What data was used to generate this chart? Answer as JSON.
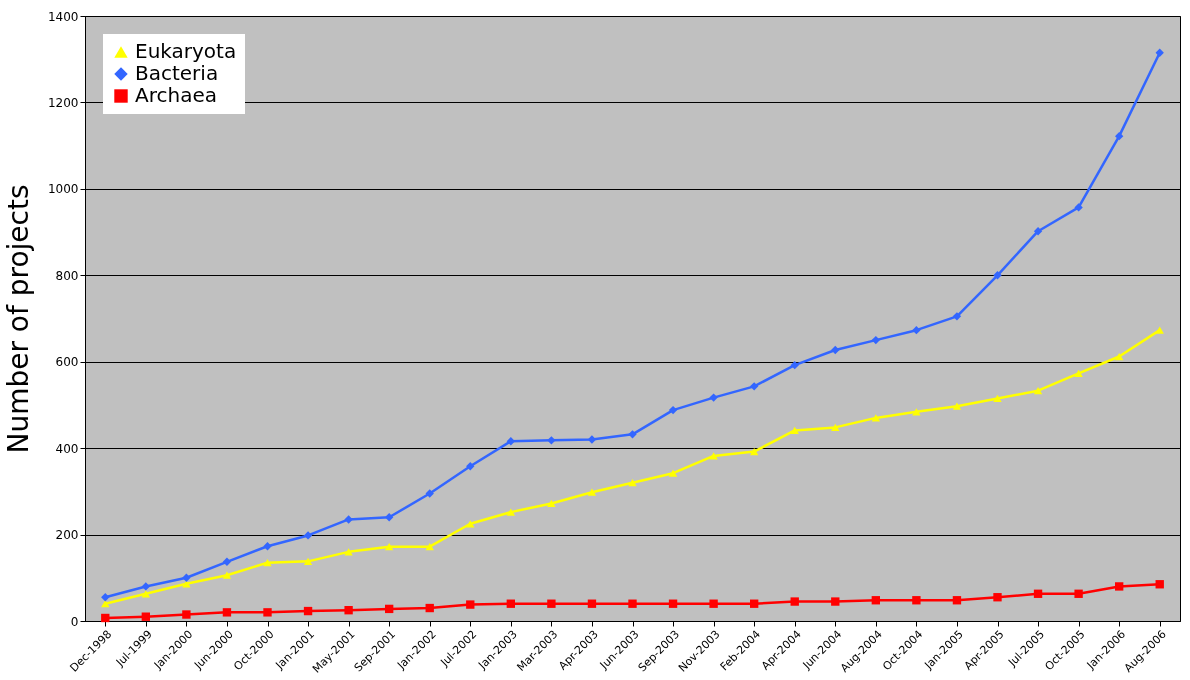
{
  "chart_data": {
    "type": "line",
    "ylabel": "Number of projects",
    "categories": [
      "Dec-1998",
      "Jul-1999",
      "Jan-2000",
      "Jun-2000",
      "Oct-2000",
      "Jan-2001",
      "May-2001",
      "Sep-2001",
      "Jan-2002",
      "Jul-2002",
      "Jan-2003",
      "Mar-2003",
      "Apr-2003",
      "Jun-2003",
      "Sep-2003",
      "Nov-2003",
      "Feb-2004",
      "Apr-2004",
      "Jun-2004",
      "Aug-2004",
      "Oct-2004",
      "Jan-2005",
      "Apr-2005",
      "Jul-2005",
      "Oct-2005",
      "Jan-2006",
      "Aug-2006"
    ],
    "series": [
      {
        "name": "Eukaryota",
        "color": "#ffff00",
        "marker": "triangle",
        "values": [
          40,
          63,
          86,
          106,
          135,
          138,
          160,
          172,
          172,
          225,
          252,
          272,
          298,
          320,
          342,
          382,
          392,
          441,
          448,
          470,
          484,
          497,
          515,
          533,
          573,
          612,
          673
        ]
      },
      {
        "name": "Bacteria",
        "color": "#3366ff",
        "marker": "diamond",
        "values": [
          55,
          80,
          100,
          137,
          173,
          198,
          235,
          240,
          295,
          358,
          416,
          418,
          420,
          432,
          488,
          517,
          543,
          592,
          627,
          650,
          673,
          705,
          800,
          902,
          957,
          1122,
          1315
        ]
      },
      {
        "name": "Archaea",
        "color": "#ff0000",
        "marker": "square",
        "values": [
          7,
          10,
          15,
          20,
          20,
          23,
          25,
          28,
          30,
          38,
          40,
          40,
          40,
          40,
          40,
          40,
          40,
          45,
          45,
          48,
          48,
          48,
          55,
          63,
          63,
          80,
          85
        ]
      }
    ],
    "ylim": [
      0,
      1400
    ],
    "yticks": [
      0,
      200,
      400,
      600,
      800,
      1000,
      1200,
      1400
    ],
    "grid": "y",
    "legend": "top left"
  }
}
